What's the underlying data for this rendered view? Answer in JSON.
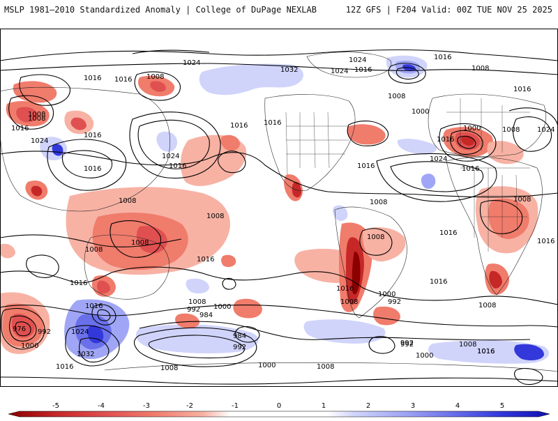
{
  "header": {
    "left_title": "MSLP 1981–2010 Standardized Anomaly | College of DuPage NEXLAB",
    "right_title": "12Z GFS | F204 Valid: 00Z TUE NOV 25 2025"
  },
  "colors": {
    "neg5": "#8b0000",
    "neg4": "#c62828",
    "neg3": "#e05050",
    "neg2": "#f07c6c",
    "neg1": "#f7b2a4",
    "zero": "#ffffff",
    "pos1": "#d0d4fb",
    "pos2": "#a0a6f5",
    "pos3": "#6a70ea",
    "pos4": "#3338db",
    "pos5": "#1010b0"
  },
  "colorbar": {
    "ticks": [
      "-5",
      "-4",
      "-3",
      "-2",
      "-1",
      "0",
      "1",
      "2",
      "3",
      "4",
      "5"
    ]
  },
  "contour_labels": [
    {
      "id": "c1",
      "text": "1024"
    },
    {
      "id": "c2",
      "text": "1032"
    },
    {
      "id": "c3",
      "text": "1024"
    },
    {
      "id": "c4",
      "text": "1016"
    },
    {
      "id": "c5",
      "text": "1024"
    },
    {
      "id": "c6",
      "text": "1016"
    },
    {
      "id": "c7",
      "text": "1008"
    },
    {
      "id": "c8",
      "text": "1008"
    },
    {
      "id": "c9",
      "text": "1016"
    },
    {
      "id": "c10",
      "text": "1016"
    },
    {
      "id": "c11",
      "text": "1016"
    },
    {
      "id": "c12",
      "text": "1008"
    },
    {
      "id": "c13",
      "text": "1016"
    },
    {
      "id": "c14",
      "text": "1008"
    },
    {
      "id": "c15",
      "text": "1016"
    },
    {
      "id": "c16",
      "text": "1024"
    },
    {
      "id": "c17",
      "text": "1024"
    },
    {
      "id": "c18",
      "text": "1016"
    },
    {
      "id": "c19",
      "text": "1016"
    },
    {
      "id": "c20",
      "text": "1016"
    },
    {
      "id": "c21",
      "text": "1016"
    },
    {
      "id": "c22",
      "text": "1008"
    },
    {
      "id": "c23",
      "text": "1000"
    },
    {
      "id": "c24",
      "text": "1016"
    },
    {
      "id": "c25",
      "text": "1000"
    },
    {
      "id": "c26",
      "text": "1008"
    },
    {
      "id": "c27",
      "text": "1024"
    },
    {
      "id": "c28",
      "text": "1016"
    },
    {
      "id": "c29",
      "text": "1024"
    },
    {
      "id": "c30",
      "text": "1016"
    },
    {
      "id": "c31",
      "text": "1008"
    },
    {
      "id": "c32",
      "text": "1008"
    },
    {
      "id": "c33",
      "text": "1008"
    },
    {
      "id": "c34",
      "text": "1008"
    },
    {
      "id": "c35",
      "text": "1008"
    },
    {
      "id": "c36",
      "text": "1008"
    },
    {
      "id": "c37",
      "text": "1016"
    },
    {
      "id": "c38",
      "text": "1016"
    },
    {
      "id": "c39",
      "text": "1016"
    },
    {
      "id": "c40",
      "text": "1016"
    },
    {
      "id": "c41",
      "text": "1016"
    },
    {
      "id": "c42",
      "text": "1008"
    },
    {
      "id": "c43",
      "text": "1000"
    },
    {
      "id": "c44",
      "text": "992"
    },
    {
      "id": "c45",
      "text": "1008"
    },
    {
      "id": "c46",
      "text": "1016"
    },
    {
      "id": "c47",
      "text": "1016"
    },
    {
      "id": "c48",
      "text": "1008"
    },
    {
      "id": "c49",
      "text": "1000"
    },
    {
      "id": "c50",
      "text": "992"
    },
    {
      "id": "c51",
      "text": "984"
    },
    {
      "id": "c52",
      "text": "984"
    },
    {
      "id": "c53",
      "text": "992"
    },
    {
      "id": "c54",
      "text": "992"
    },
    {
      "id": "c55",
      "text": "976"
    },
    {
      "id": "c56",
      "text": "992"
    },
    {
      "id": "c57",
      "text": "1024"
    },
    {
      "id": "c58",
      "text": "1032"
    },
    {
      "id": "c59",
      "text": "1000"
    },
    {
      "id": "c60",
      "text": "1016"
    },
    {
      "id": "c61",
      "text": "1008"
    },
    {
      "id": "c62",
      "text": "1000"
    },
    {
      "id": "c63",
      "text": "1008"
    },
    {
      "id": "c64",
      "text": "1000"
    },
    {
      "id": "c65",
      "text": "1008"
    },
    {
      "id": "c66",
      "text": "1016"
    },
    {
      "id": "c67",
      "text": "992"
    },
    {
      "id": "c68",
      "text": "1008"
    },
    {
      "id": "c69",
      "text": "1016"
    }
  ]
}
